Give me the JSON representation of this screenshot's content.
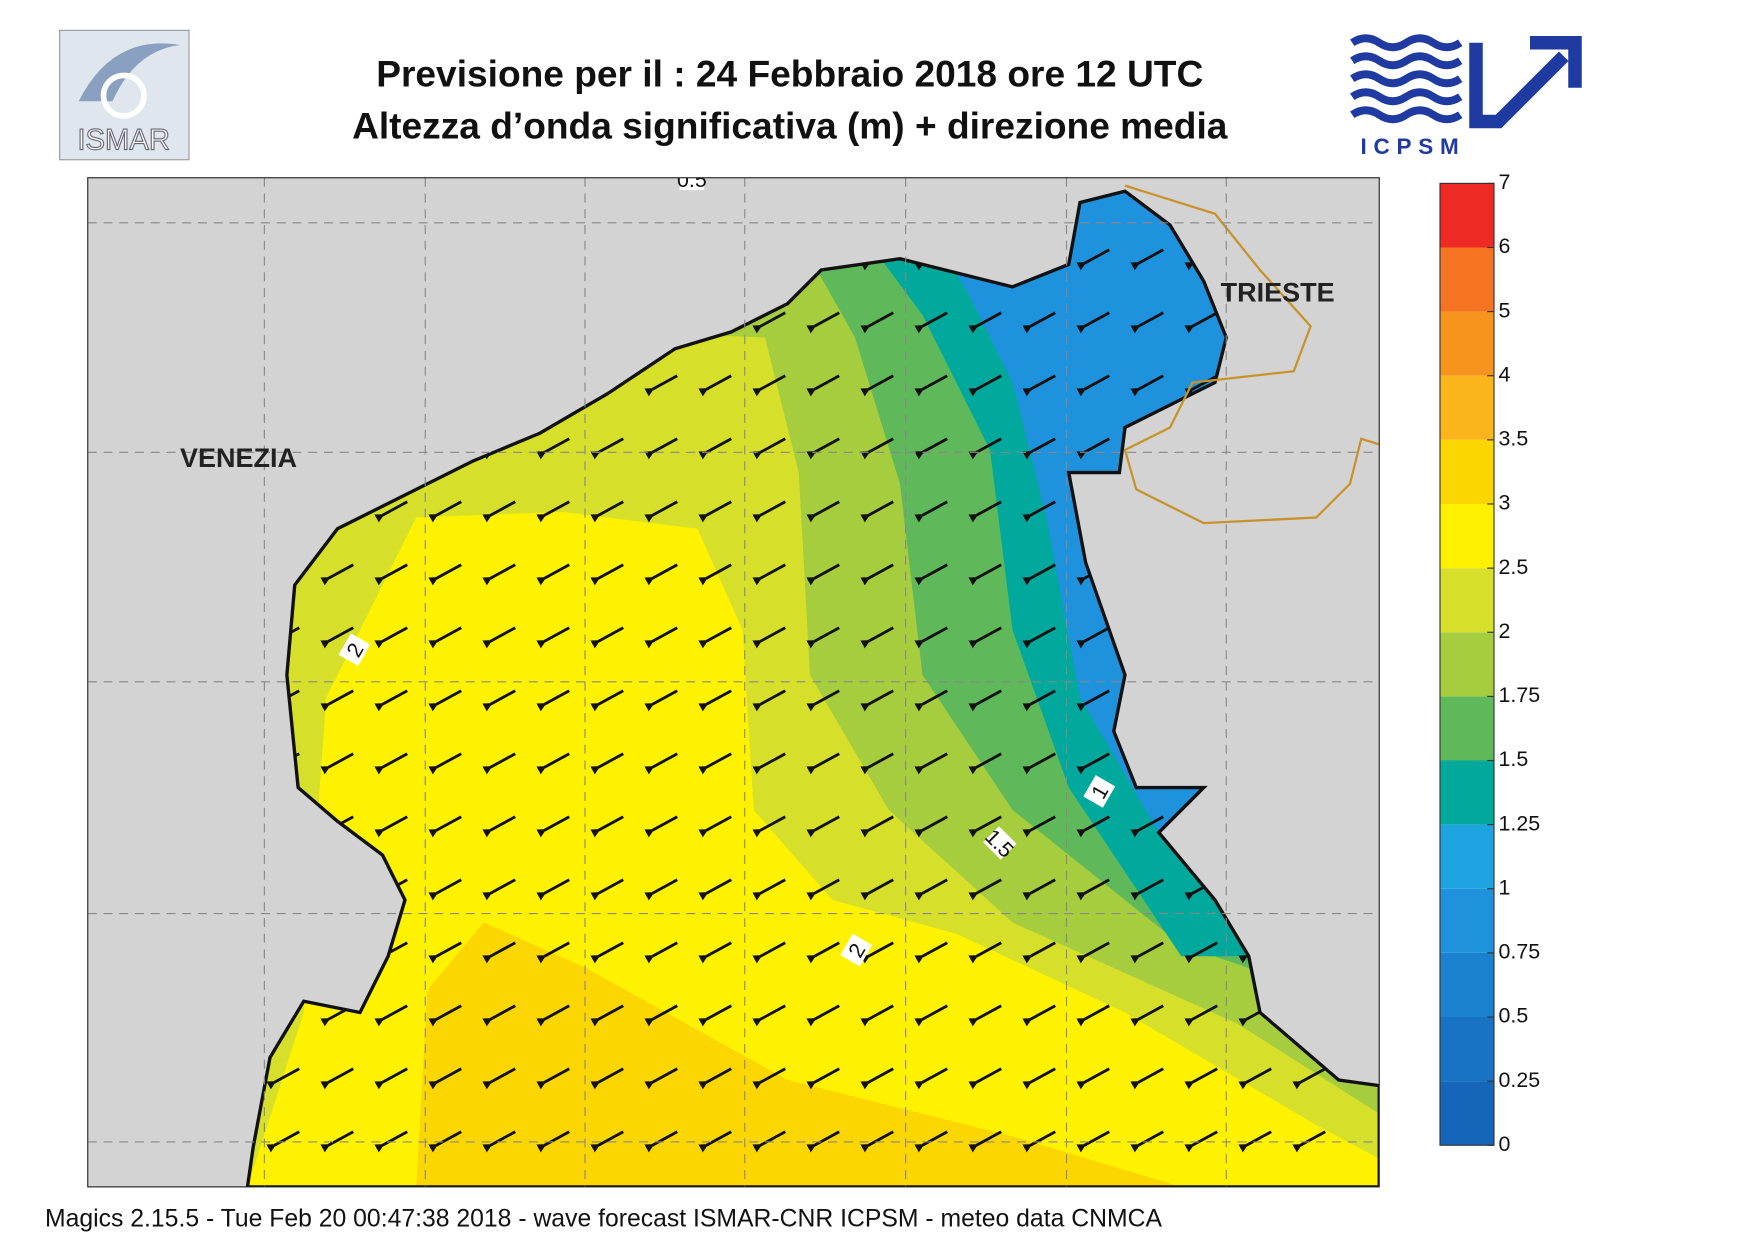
{
  "header": {
    "title_line1": "Previsione per il  :  24  Febbraio 2018   ore 12 UTC",
    "title_line2": "Altezza d’onda significativa (m) + direzione media"
  },
  "logos": {
    "left": "ISMAR",
    "right": "ICPSM"
  },
  "map": {
    "places": [
      "VENEZIA",
      "TRIESTE"
    ],
    "contour_labels": [
      "0.5",
      "2",
      "1",
      "1.5",
      "2"
    ]
  },
  "colorbar": {
    "levels": [
      0,
      0.25,
      0.5,
      0.75,
      1,
      1.25,
      1.5,
      1.75,
      2,
      2.5,
      3,
      3.5,
      4,
      5,
      6,
      7
    ],
    "colors": [
      "#1565b8",
      "#1873c4",
      "#1b82d0",
      "#1f92dd",
      "#1ca3e0",
      "#00a99b",
      "#5fb95a",
      "#a5cd3d",
      "#d6e02b",
      "#fff200",
      "#fcd600",
      "#fbb51c",
      "#f7941d",
      "#f47421",
      "#ee2a24",
      "#ec1869"
    ]
  },
  "footer": "Magics 2.15.5 - Tue Feb 20 00:47:38 2018 - wave forecast  ISMAR-CNR  ICPSM - meteo data    CNMCA"
}
